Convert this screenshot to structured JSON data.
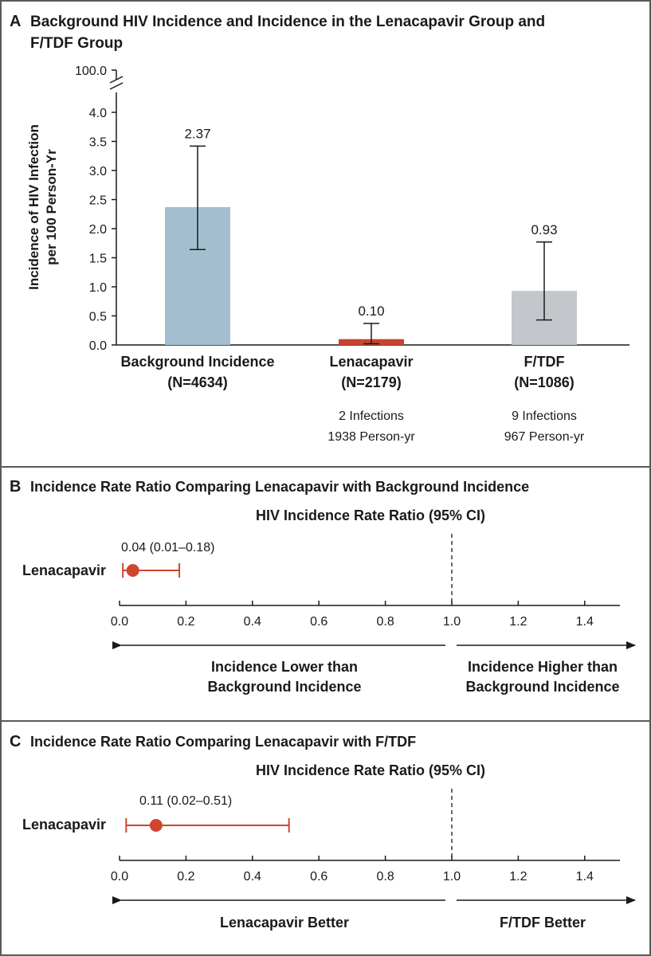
{
  "colors": {
    "frame": "#5a5a5a",
    "background_bar": "#a3bfcf",
    "lenacapavir_bar": "#c8442f",
    "ftdf_bar": "#c3c6ca",
    "marker": "#d0452e",
    "text": "#1a1a1a"
  },
  "panels": {
    "a": {
      "letter": "A",
      "title_line1": "Background HIV Incidence and Incidence in the Lenacapavir Group and",
      "title_line2": "F/TDF Group",
      "ylabel_line1": "Incidence of HIV Infection",
      "ylabel_line2": "per 100 Person-Yr",
      "axis_break_label": "100.0",
      "bars": [
        {
          "name_line1": "Background Incidence",
          "name_line2": "(N=4634)",
          "note_line1": "",
          "note_line2": ""
        },
        {
          "name_line1": "Lenacapavir",
          "name_line2": "(N=2179)",
          "note_line1": "2 Infections",
          "note_line2": "1938 Person-yr"
        },
        {
          "name_line1": "F/TDF",
          "name_line2": "(N=1086)",
          "note_line1": "9 Infections",
          "note_line2": "967 Person-yr"
        }
      ]
    },
    "b": {
      "letter": "B",
      "title": "Incidence Rate Ratio Comparing Lenacapavir with Background Incidence",
      "axis_title": "HIV Incidence Rate Ratio (95% CI)",
      "row_label": "Lenacapavir",
      "estimate_label": "0.04 (0.01–0.18)",
      "left_note_line1": "Incidence Lower than",
      "left_note_line2": "Background Incidence",
      "right_note_line1": "Incidence Higher than",
      "right_note_line2": "Background Incidence"
    },
    "c": {
      "letter": "C",
      "title": "Incidence Rate Ratio Comparing Lenacapavir with F/TDF",
      "axis_title": "HIV Incidence Rate Ratio (95% CI)",
      "row_label": "Lenacapavir",
      "estimate_label": "0.11 (0.02–0.51)",
      "left_note": "Lenacapavir Better",
      "right_note": "F/TDF Better"
    }
  },
  "chart_data": [
    {
      "type": "bar",
      "title": "Background HIV Incidence and Incidence in the Lenacapavir Group and F/TDF Group",
      "categories": [
        "Background Incidence (N=4634)",
        "Lenacapavir (N=2179)",
        "F/TDF (N=1086)"
      ],
      "values": [
        2.37,
        0.1,
        0.93
      ],
      "value_labels": [
        "2.37",
        "0.10",
        "0.93"
      ],
      "ci_low": [
        1.64,
        0.02,
        0.43
      ],
      "ci_high": [
        3.42,
        0.37,
        1.77
      ],
      "ylabel": "Incidence of HIV Infection per 100 Person-Yr",
      "ylim": [
        0,
        4.0
      ],
      "y_break_max": 100.0,
      "yticks": [
        "0.0",
        "0.5",
        "1.0",
        "1.5",
        "2.0",
        "2.5",
        "3.0",
        "3.5",
        "4.0"
      ],
      "grid": false
    },
    {
      "type": "scatter",
      "title": "Incidence Rate Ratio Comparing Lenacapavir with Background Incidence",
      "xlabel": "HIV Incidence Rate Ratio (95% CI)",
      "points": [
        {
          "label": "Lenacapavir",
          "estimate": 0.04,
          "ci_low": 0.01,
          "ci_high": 0.18
        }
      ],
      "reference_line": 1.0,
      "xlim": [
        0,
        1.5
      ],
      "xticks": [
        "0.0",
        "0.2",
        "0.4",
        "0.6",
        "0.8",
        "1.0",
        "1.2",
        "1.4"
      ],
      "grid": false
    },
    {
      "type": "scatter",
      "title": "Incidence Rate Ratio Comparing Lenacapavir with F/TDF",
      "xlabel": "HIV Incidence Rate Ratio (95% CI)",
      "points": [
        {
          "label": "Lenacapavir",
          "estimate": 0.11,
          "ci_low": 0.02,
          "ci_high": 0.51
        }
      ],
      "reference_line": 1.0,
      "xlim": [
        0,
        1.5
      ],
      "xticks": [
        "0.0",
        "0.2",
        "0.4",
        "0.6",
        "0.8",
        "1.0",
        "1.2",
        "1.4"
      ],
      "grid": false
    }
  ]
}
